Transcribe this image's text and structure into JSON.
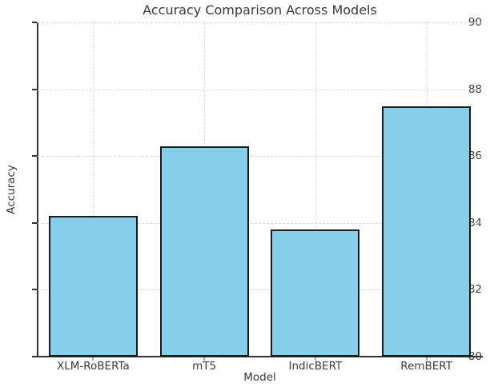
{
  "figure": {
    "title": "Accuracy Comparison Across Models"
  },
  "chart_data": {
    "type": "bar",
    "title": "Accuracy Comparison Across Models",
    "categories": [
      "XLM-RoBERTa",
      "mT5",
      "IndicBERT",
      "RemBERT"
    ],
    "values": [
      84.2,
      86.3,
      83.8,
      87.5
    ],
    "xlabel": "Model",
    "ylabel": "Accuracy",
    "ylim": [
      80,
      90
    ],
    "yticks": [
      80,
      82,
      84,
      86,
      88,
      90
    ],
    "grid": "dashed-both-axes",
    "legend": "none",
    "bar_width_fraction": 0.8,
    "colors": {
      "bar_fill": "#87CEEB",
      "bar_edge": "#1a1a1a",
      "grid": "#d9d9d9",
      "spine": "#333333",
      "text": "#3a3a3a",
      "background": "#ffffff"
    }
  }
}
